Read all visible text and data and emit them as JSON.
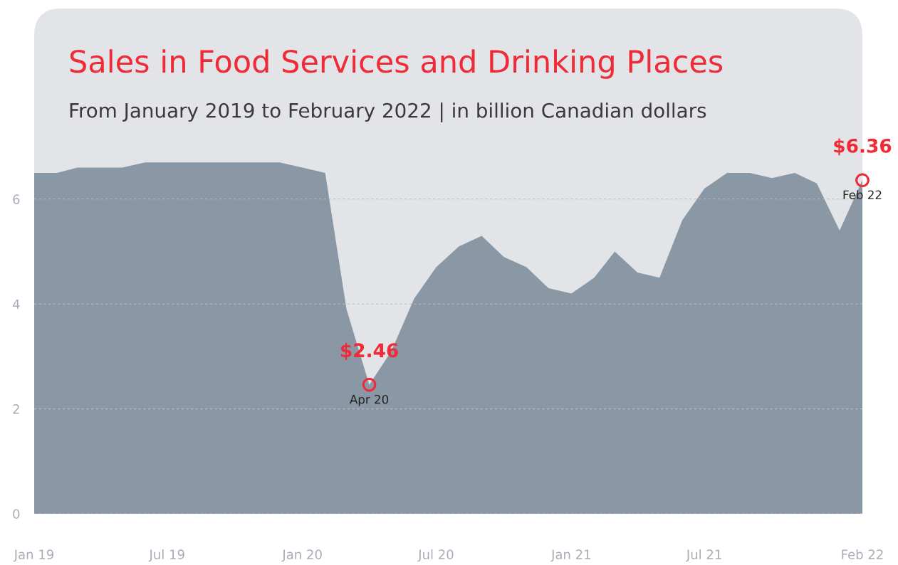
{
  "chart_data": {
    "type": "area",
    "title": "Sales in Food Services and Drinking Places",
    "subtitle": "From January 2019 to February 2022 | in billion Canadian dollars",
    "x": [
      "2019-01",
      "2019-02",
      "2019-03",
      "2019-04",
      "2019-05",
      "2019-06",
      "2019-07",
      "2019-08",
      "2019-09",
      "2019-10",
      "2019-11",
      "2019-12",
      "2020-01",
      "2020-02",
      "2020-03",
      "2020-04",
      "2020-05",
      "2020-06",
      "2020-07",
      "2020-08",
      "2020-09",
      "2020-10",
      "2020-11",
      "2020-12",
      "2021-01",
      "2021-02",
      "2021-03",
      "2021-04",
      "2021-05",
      "2021-06",
      "2021-07",
      "2021-08",
      "2021-09",
      "2021-10",
      "2021-11",
      "2021-12",
      "2022-01",
      "2022-02"
    ],
    "series": [
      {
        "color": "#8a97a5",
        "values": [
          6.5,
          6.5,
          6.6,
          6.6,
          6.6,
          6.7,
          6.7,
          6.7,
          6.7,
          6.7,
          6.7,
          6.7,
          6.6,
          6.5,
          3.9,
          2.46,
          3.1,
          4.1,
          4.7,
          5.1,
          5.3,
          4.9,
          4.7,
          4.3,
          4.2,
          4.5,
          5.0,
          4.6,
          4.5,
          5.6,
          6.2,
          6.5,
          6.5,
          6.4,
          6.5,
          6.3,
          5.4,
          6.36
        ]
      }
    ],
    "xlim": [
      "2019-01",
      "2022-02"
    ],
    "xticks": [
      {
        "value": "2019-01",
        "label": "Jan 19"
      },
      {
        "value": "2019-07",
        "label": "Jul 19"
      },
      {
        "value": "2020-01",
        "label": "Jan 20"
      },
      {
        "value": "2020-07",
        "label": "Jul 20"
      },
      {
        "value": "2021-01",
        "label": "Jan 21"
      },
      {
        "value": "2021-07",
        "label": "Jul 21"
      },
      {
        "value": "2022-02",
        "label": "Feb 22"
      }
    ],
    "ylim": [
      0,
      9.6
    ],
    "yticks": [
      0,
      2,
      4,
      6
    ],
    "grid": "y",
    "annotations": [
      {
        "text": "$2.46",
        "x": "2020-04",
        "y": 2.46
      },
      {
        "text": "Apr 20",
        "x": "2020-04",
        "y": 2.46
      },
      {
        "text": "$6.36",
        "x": "2022-02",
        "y": 6.36
      },
      {
        "text": "Feb 22",
        "x": "2022-02",
        "y": 6.36
      }
    ]
  }
}
